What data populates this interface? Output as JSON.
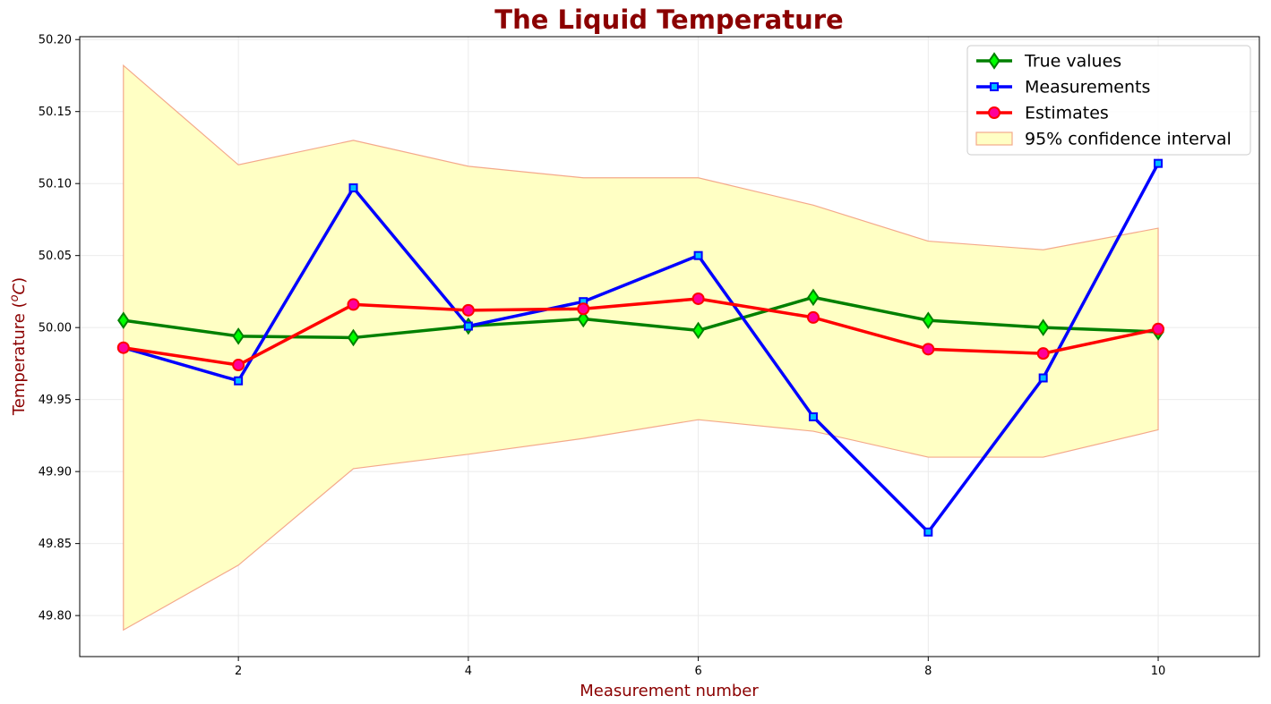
{
  "chart_data": {
    "type": "line",
    "title": "The Liquid  Temperature",
    "xlabel": "Measurement number",
    "ylabel_main": "Temperature (",
    "ylabel_unit_sup": "o",
    "ylabel_unit": "C",
    "ylabel_close": ")",
    "x": [
      1,
      2,
      3,
      4,
      5,
      6,
      7,
      8,
      9,
      10
    ],
    "xlim": [
      0.62,
      10.88
    ],
    "ylim": [
      49.7715,
      50.202
    ],
    "x_ticks": [
      2,
      4,
      6,
      8,
      10
    ],
    "x_tick_labels": [
      "2",
      "4",
      "6",
      "8",
      "10"
    ],
    "y_ticks": [
      49.8,
      49.85,
      49.9,
      49.95,
      50.0,
      50.05,
      50.1,
      50.15,
      50.2
    ],
    "y_tick_labels": [
      "49.80",
      "49.85",
      "49.90",
      "49.95",
      "50.00",
      "50.05",
      "50.10",
      "50.15",
      "50.20"
    ],
    "grid": true,
    "legend_position": "top-right",
    "series": [
      {
        "name": "True values",
        "color": "#008000",
        "marker": "diamond",
        "marker_fill": "#00ff00",
        "values": [
          50.005,
          49.994,
          49.993,
          50.001,
          50.006,
          49.998,
          50.021,
          50.005,
          50.0,
          49.997
        ]
      },
      {
        "name": "Measurements",
        "color": "#0000ff",
        "marker": "square",
        "marker_fill": "#00bfff",
        "values": [
          49.986,
          49.963,
          50.097,
          50.001,
          50.018,
          50.05,
          49.938,
          49.858,
          49.965,
          50.114
        ]
      },
      {
        "name": "Estimates",
        "color": "#ff0000",
        "marker": "circle",
        "marker_fill": "#ff0099",
        "values": [
          49.986,
          49.974,
          50.016,
          50.012,
          50.013,
          50.02,
          50.007,
          49.985,
          49.982,
          49.999
        ]
      }
    ],
    "confidence_band": {
      "name": "95% confidence interval",
      "fill": "#ffffc4",
      "edge": "#f4a98b",
      "upper": [
        50.182,
        50.113,
        50.13,
        50.112,
        50.104,
        50.104,
        50.085,
        50.06,
        50.054,
        50.069
      ],
      "lower": [
        49.79,
        49.835,
        49.902,
        49.912,
        49.923,
        49.936,
        49.928,
        49.91,
        49.91,
        49.929
      ]
    },
    "colors": {
      "title": "#8b0000",
      "axis_label": "#8b0000",
      "grid": "#ebebeb"
    }
  }
}
